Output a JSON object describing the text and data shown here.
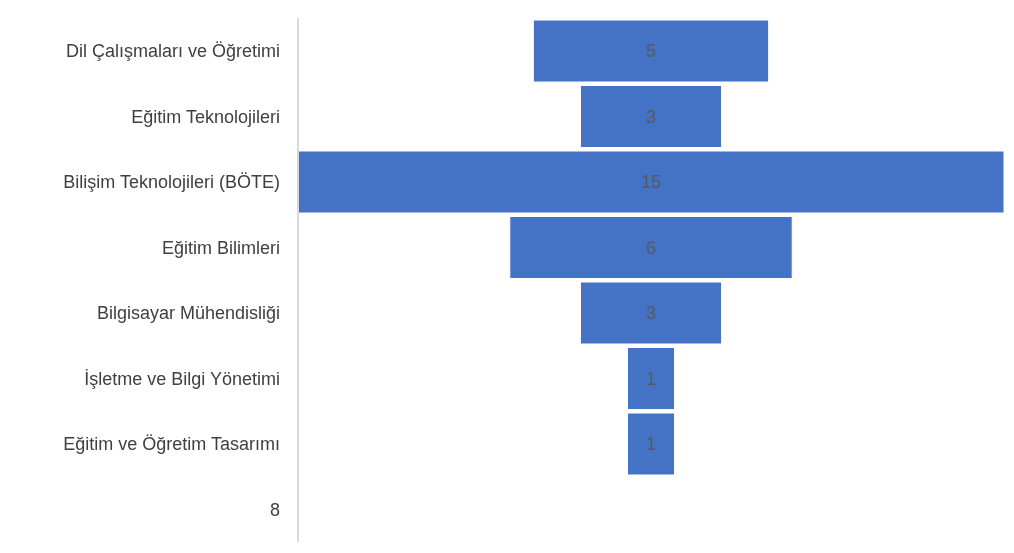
{
  "chart_data": {
    "type": "other",
    "categories": [
      "Dil Çalışmaları ve Öğretimi",
      "Eğitim Teknolojileri",
      "Bilişim Teknolojileri (BÖTE)",
      "Eğitim Bilimleri",
      "Bilgisayar Mühendisliği",
      "İşletme ve Bilgi Yönetimi",
      "Eğitim ve Öğretim Tasarımı",
      "8"
    ],
    "values": [
      5,
      3,
      15,
      6,
      3,
      1,
      1,
      null
    ],
    "color": "#4472c4",
    "data_labels": true
  }
}
